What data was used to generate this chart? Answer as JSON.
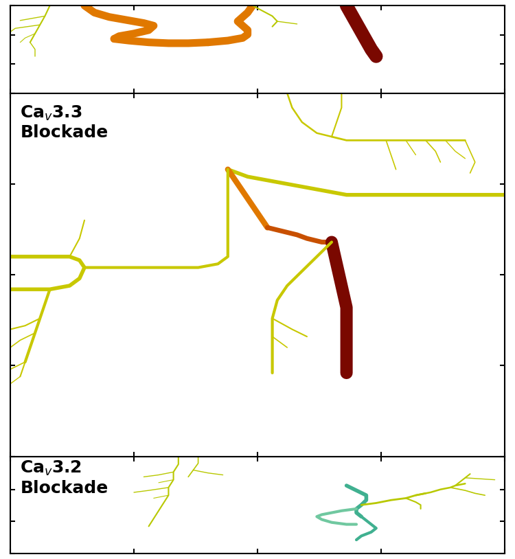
{
  "bg_color": "#ffffff",
  "border_color": "#000000",
  "label_fontsize": 18,
  "label_fontweight": "bold",
  "colors": {
    "orange": "#E07800",
    "dark_orange": "#C85000",
    "dark_red": "#7A0800",
    "yellow": "#C8C800",
    "yellow2": "#BCBC00",
    "yellow_green": "#B8C800",
    "teal": "#40B090",
    "light_teal": "#70C8A0"
  }
}
